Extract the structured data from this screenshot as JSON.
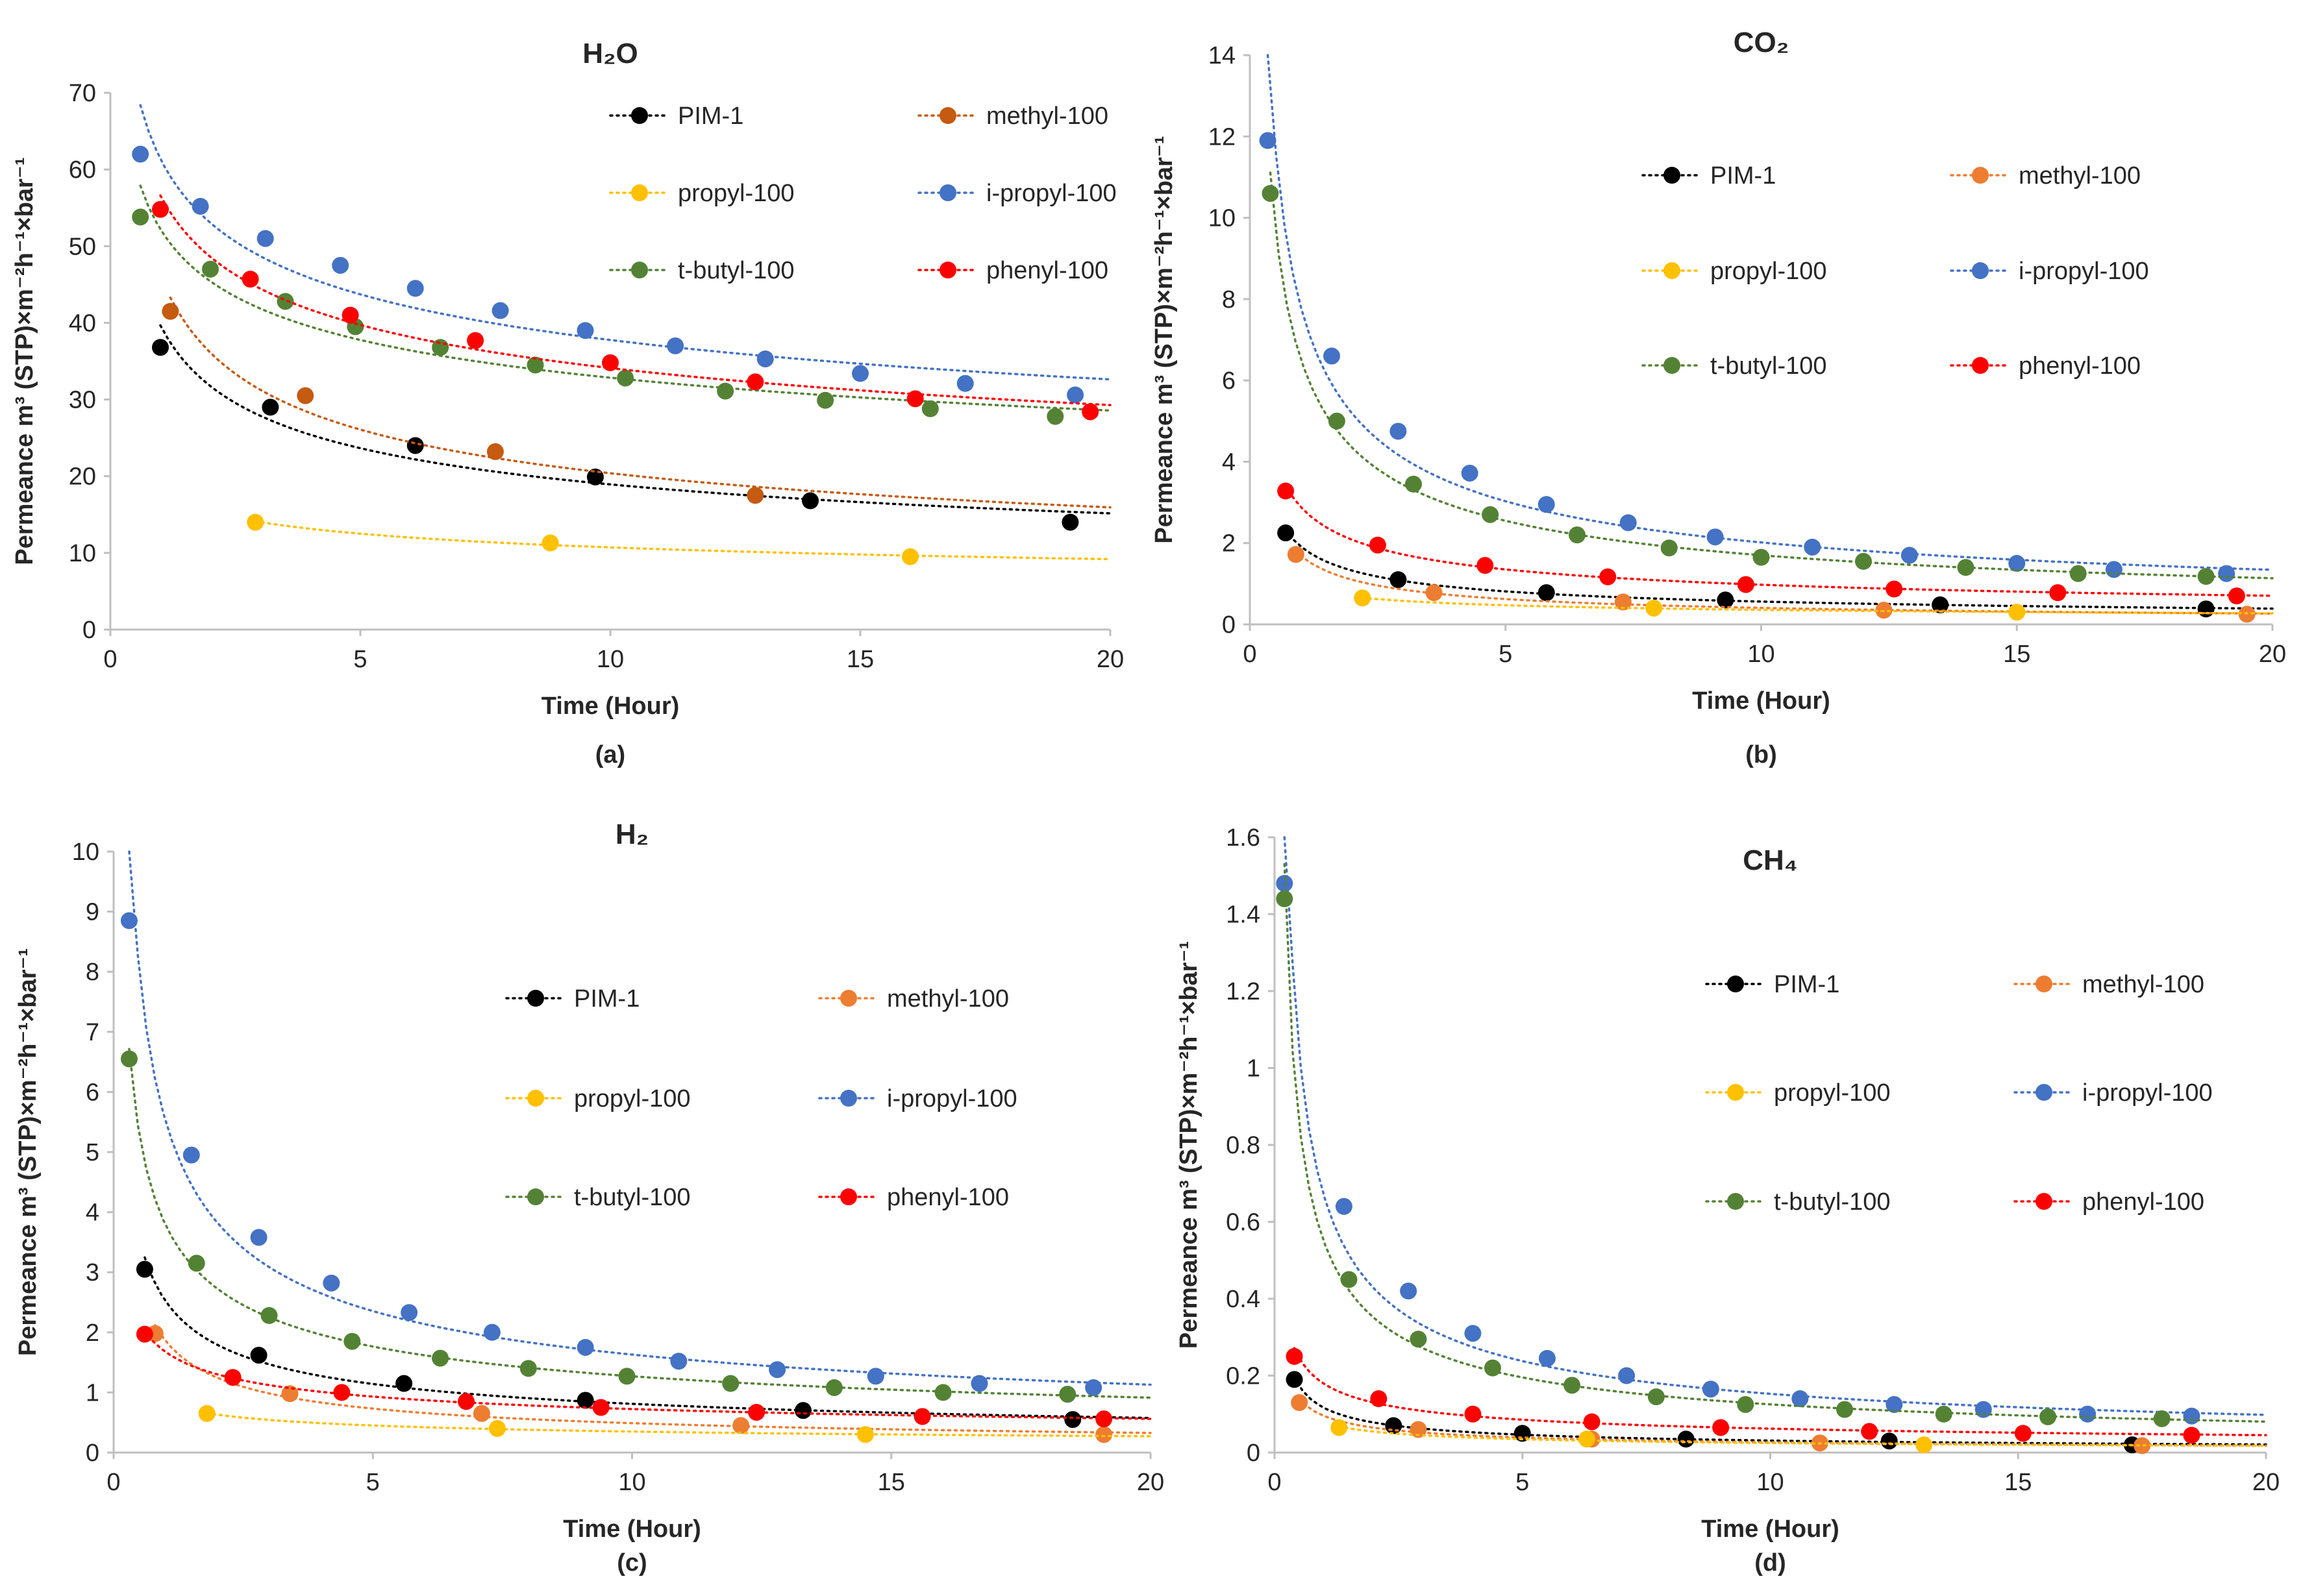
{
  "chart_data": [
    {
      "type": "scatter",
      "panel": "a",
      "caption": "(a)",
      "title": "H₂O",
      "xlabel": "Time (Hour)",
      "ylabel": "Permeance m³ (STP)×m⁻²h⁻¹×bar⁻¹",
      "xlim": [
        0,
        20
      ],
      "ylim": [
        0,
        70
      ],
      "xticks": [
        0,
        5,
        10,
        15,
        20
      ],
      "yticks": [
        0,
        10,
        20,
        30,
        40,
        50,
        60,
        70
      ],
      "legend_position": "top-right",
      "series": [
        {
          "name": "PIM-1",
          "color": "#000000",
          "x": [
            1.0,
            3.2,
            6.1,
            9.7,
            14.0,
            19.2
          ],
          "y": [
            36.8,
            29.0,
            24.0,
            19.9,
            16.8,
            14.0
          ]
        },
        {
          "name": "methyl-100",
          "color": "#C55A11",
          "x": [
            1.2,
            3.9,
            7.7,
            12.9
          ],
          "y": [
            41.5,
            30.5,
            23.2,
            17.5
          ]
        },
        {
          "name": "propyl-100",
          "color": "#FFC000",
          "x": [
            2.9,
            8.8,
            16.0
          ],
          "y": [
            14.0,
            11.3,
            9.5
          ]
        },
        {
          "name": "i-propyl-100",
          "color": "#4472C4",
          "x": [
            0.6,
            1.8,
            3.1,
            4.6,
            6.1,
            7.8,
            9.5,
            11.3,
            13.1,
            15.0,
            17.1,
            19.3
          ],
          "y": [
            62.0,
            55.2,
            51.0,
            47.5,
            44.5,
            41.6,
            39.0,
            37.0,
            35.3,
            33.4,
            32.1,
            30.6
          ]
        },
        {
          "name": "t-butyl-100",
          "color": "#548235",
          "x": [
            0.6,
            2.0,
            3.5,
            4.9,
            6.6,
            8.5,
            10.3,
            12.3,
            14.3,
            16.4,
            18.9
          ],
          "y": [
            53.8,
            47.0,
            42.8,
            39.5,
            36.8,
            34.5,
            32.8,
            31.1,
            29.9,
            28.8,
            27.8
          ]
        },
        {
          "name": "phenyl-100",
          "color": "#FF0000",
          "x": [
            1.0,
            2.8,
            4.8,
            7.3,
            10.0,
            12.9,
            16.1,
            19.6
          ],
          "y": [
            54.8,
            45.7,
            41.0,
            37.7,
            34.8,
            32.3,
            30.1,
            28.4
          ]
        }
      ]
    },
    {
      "type": "scatter",
      "panel": "b",
      "caption": "(b)",
      "title": "CO₂",
      "xlabel": "Time (Hour)",
      "ylabel": "Permeance m³ (STP)×m⁻²h⁻¹×bar⁻¹",
      "xlim": [
        0,
        20
      ],
      "ylim": [
        0,
        14
      ],
      "xticks": [
        0,
        5,
        10,
        15,
        20
      ],
      "yticks": [
        0,
        2,
        4,
        6,
        8,
        10,
        12,
        14
      ],
      "legend_position": "top-right",
      "series": [
        {
          "name": "PIM-1",
          "color": "#000000",
          "x": [
            0.7,
            2.9,
            5.8,
            9.3,
            13.5,
            18.7
          ],
          "y": [
            2.25,
            1.1,
            0.78,
            0.6,
            0.48,
            0.38
          ]
        },
        {
          "name": "methyl-100",
          "color": "#ED7D31",
          "x": [
            0.9,
            3.6,
            7.3,
            12.4,
            19.5
          ],
          "y": [
            1.72,
            0.78,
            0.55,
            0.35,
            0.25
          ]
        },
        {
          "name": "propyl-100",
          "color": "#FFC000",
          "x": [
            2.2,
            7.9,
            15.0
          ],
          "y": [
            0.65,
            0.4,
            0.3
          ]
        },
        {
          "name": "i-propyl-100",
          "color": "#4472C4",
          "x": [
            0.35,
            1.6,
            2.9,
            4.3,
            5.8,
            7.4,
            9.1,
            11.0,
            12.9,
            15.0,
            16.9,
            19.1
          ],
          "y": [
            11.9,
            6.6,
            4.75,
            3.72,
            2.95,
            2.5,
            2.15,
            1.9,
            1.7,
            1.5,
            1.35,
            1.25
          ]
        },
        {
          "name": "t-butyl-100",
          "color": "#548235",
          "x": [
            0.4,
            1.7,
            3.2,
            4.7,
            6.4,
            8.2,
            10.0,
            12.0,
            14.0,
            16.2,
            18.7
          ],
          "y": [
            10.6,
            5.0,
            3.45,
            2.7,
            2.2,
            1.88,
            1.65,
            1.55,
            1.4,
            1.25,
            1.18
          ]
        },
        {
          "name": "phenyl-100",
          "color": "#FF0000",
          "x": [
            0.7,
            2.5,
            4.6,
            7.0,
            9.7,
            12.6,
            15.8,
            19.3
          ],
          "y": [
            3.28,
            1.95,
            1.45,
            1.17,
            0.98,
            0.87,
            0.78,
            0.7
          ]
        }
      ]
    },
    {
      "type": "scatter",
      "panel": "c",
      "caption": "(c)",
      "title": "H₂",
      "xlabel": "Time (Hour)",
      "ylabel": "Permeance m³ (STP)×m⁻²h⁻¹×bar⁻¹",
      "xlim": [
        0,
        20
      ],
      "ylim": [
        0,
        10
      ],
      "xticks": [
        0,
        5,
        10,
        15,
        20
      ],
      "yticks": [
        0,
        1,
        2,
        3,
        4,
        5,
        6,
        7,
        8,
        9,
        10
      ],
      "legend_position": "top-right",
      "series": [
        {
          "name": "PIM-1",
          "color": "#000000",
          "x": [
            0.6,
            2.8,
            5.6,
            9.1,
            13.3,
            18.5
          ],
          "y": [
            3.05,
            1.62,
            1.15,
            0.87,
            0.7,
            0.55
          ]
        },
        {
          "name": "methyl-100",
          "color": "#ED7D31",
          "x": [
            0.8,
            3.4,
            7.1,
            12.1,
            19.1
          ],
          "y": [
            1.98,
            0.98,
            0.65,
            0.45,
            0.3
          ]
        },
        {
          "name": "propyl-100",
          "color": "#FFC000",
          "x": [
            1.8,
            7.4,
            14.5
          ],
          "y": [
            0.65,
            0.4,
            0.3
          ]
        },
        {
          "name": "i-propyl-100",
          "color": "#4472C4",
          "x": [
            0.3,
            1.5,
            2.8,
            4.2,
            5.7,
            7.3,
            9.1,
            10.9,
            12.8,
            14.7,
            16.7,
            18.9
          ],
          "y": [
            8.85,
            4.95,
            3.58,
            2.82,
            2.33,
            2.0,
            1.75,
            1.52,
            1.38,
            1.27,
            1.15,
            1.08
          ]
        },
        {
          "name": "t-butyl-100",
          "color": "#548235",
          "x": [
            0.3,
            1.6,
            3.0,
            4.6,
            6.3,
            8.0,
            9.9,
            11.9,
            13.9,
            16.0,
            18.4
          ],
          "y": [
            6.55,
            3.15,
            2.28,
            1.85,
            1.57,
            1.4,
            1.27,
            1.15,
            1.08,
            1.0,
            0.97
          ]
        },
        {
          "name": "phenyl-100",
          "color": "#FF0000",
          "x": [
            0.6,
            2.3,
            4.4,
            6.8,
            9.4,
            12.4,
            15.6,
            19.1
          ],
          "y": [
            1.97,
            1.25,
            1.0,
            0.85,
            0.75,
            0.67,
            0.6,
            0.56
          ]
        }
      ]
    },
    {
      "type": "scatter",
      "panel": "d",
      "caption": "(d)",
      "title": "CH₄",
      "xlabel": "Time (Hour)",
      "ylabel": "Permeance m³ (STP)×m⁻²h⁻¹×bar⁻¹",
      "xlim": [
        0,
        20
      ],
      "ylim": [
        0,
        1.6
      ],
      "xticks": [
        0,
        5,
        10,
        15,
        20
      ],
      "yticks": [
        "0",
        "0.2",
        "0.4",
        "0.6",
        "0.8",
        "1",
        "1.2",
        "1.4",
        "1.6"
      ],
      "legend_position": "top-right",
      "series": [
        {
          "name": "PIM-1",
          "color": "#000000",
          "x": [
            0.4,
            2.4,
            5.0,
            8.3,
            12.4,
            17.3
          ],
          "y": [
            0.19,
            0.07,
            0.05,
            0.035,
            0.03,
            0.02
          ]
        },
        {
          "name": "methyl-100",
          "color": "#ED7D31",
          "x": [
            0.5,
            2.9,
            6.4,
            11.0,
            17.5
          ],
          "y": [
            0.13,
            0.06,
            0.035,
            0.025,
            0.018
          ]
        },
        {
          "name": "propyl-100",
          "color": "#FFC000",
          "x": [
            1.3,
            6.3,
            13.1
          ],
          "y": [
            0.065,
            0.035,
            0.02
          ]
        },
        {
          "name": "i-propyl-100",
          "color": "#4472C4",
          "x": [
            0.2,
            1.4,
            2.7,
            4.0,
            5.5,
            7.1,
            8.8,
            10.6,
            12.5,
            14.3,
            16.4,
            18.5
          ],
          "y": [
            1.48,
            0.64,
            0.42,
            0.31,
            0.245,
            0.2,
            0.165,
            0.14,
            0.125,
            0.112,
            0.1,
            0.095
          ]
        },
        {
          "name": "t-butyl-100",
          "color": "#548235",
          "x": [
            0.2,
            1.5,
            2.9,
            4.4,
            6.0,
            7.7,
            9.5,
            11.5,
            13.5,
            15.6,
            17.9
          ],
          "y": [
            1.44,
            0.45,
            0.295,
            0.22,
            0.175,
            0.145,
            0.125,
            0.112,
            0.1,
            0.093,
            0.088
          ]
        },
        {
          "name": "phenyl-100",
          "color": "#FF0000",
          "x": [
            0.4,
            2.1,
            4.0,
            6.4,
            9.0,
            12.0,
            15.1,
            18.5
          ],
          "y": [
            0.25,
            0.14,
            0.1,
            0.08,
            0.065,
            0.055,
            0.05,
            0.045
          ]
        }
      ]
    }
  ]
}
